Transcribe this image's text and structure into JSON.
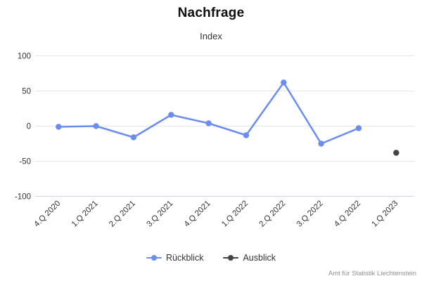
{
  "header": {
    "title": "Nachfrage",
    "subtitle": "Index"
  },
  "footer": {
    "credit": "Amt für Statistik Liechtenstein"
  },
  "chart_data": {
    "type": "line",
    "title": "Nachfrage",
    "subtitle": "Index",
    "xlabel": "",
    "ylabel": "",
    "categories": [
      "4.Q 2020",
      "1.Q 2021",
      "2.Q 2021",
      "3.Q 2021",
      "4.Q 2021",
      "1.Q 2022",
      "2.Q 2022",
      "3.Q 2022",
      "4.Q 2022",
      "1.Q 2023"
    ],
    "series": [
      {
        "name": "Rückblick",
        "color": "#6b8df2",
        "marker": "circle",
        "values": [
          -1,
          0,
          -16,
          16,
          4,
          -13,
          62,
          -25,
          -3,
          null
        ]
      },
      {
        "name": "Ausblick",
        "color": "#434348",
        "marker": "circle",
        "values": [
          null,
          null,
          null,
          null,
          null,
          null,
          null,
          null,
          null,
          -38
        ]
      }
    ],
    "ylim": [
      -100,
      100
    ],
    "yticks": [
      100,
      50,
      0,
      -50,
      -100
    ],
    "grid": true,
    "gridline_color": "#e6e6e6",
    "axisline_color": "#ccd6eb",
    "tick_label_color": "#333333",
    "legend_position": "bottom"
  }
}
